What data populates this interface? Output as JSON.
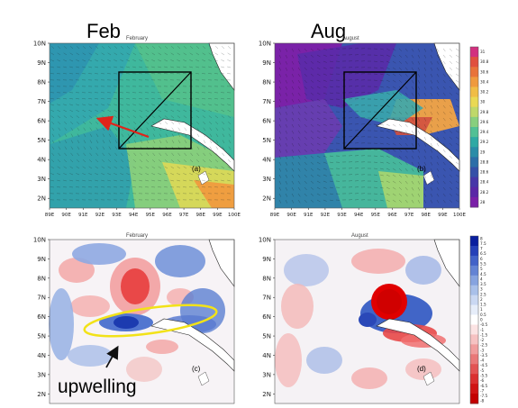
{
  "header": {
    "left": "Feb",
    "right": "Aug"
  },
  "annotation": {
    "upwelling": "upwelling"
  },
  "chart_data": [
    {
      "type": "heatmap",
      "panel": "(a)",
      "title": "February",
      "xlabel": "",
      "ylabel": "",
      "x_ticks": [
        "89E",
        "90E",
        "91E",
        "92E",
        "93E",
        "94E",
        "95E",
        "96E",
        "97E",
        "98E",
        "99E",
        "100E"
      ],
      "y_ticks": [
        "2N",
        "3N",
        "4N",
        "5N",
        "6N",
        "7N",
        "8N",
        "9N",
        "10N"
      ],
      "xlim": [
        89,
        100
      ],
      "ylim": [
        1.5,
        10
      ],
      "box_deg": {
        "lon": [
          93.3,
          97.8
        ],
        "lat": [
          4.8,
          8.7
        ]
      },
      "arrow_deg": {
        "from": [
          96.4,
          5.3
        ],
        "to": [
          92.9,
          6.4
        ]
      },
      "colormap": "temperature",
      "vectors": true
    },
    {
      "type": "heatmap",
      "panel": "(b)",
      "title": "August",
      "xlabel": "",
      "ylabel": "",
      "x_ticks": [
        "89E",
        "90E",
        "91E",
        "92E",
        "93E",
        "94E",
        "95E",
        "96E",
        "97E",
        "98E",
        "99E",
        "100E"
      ],
      "y_ticks": [
        "2N",
        "3N",
        "4N",
        "5N",
        "6N",
        "7N",
        "8N",
        "9N",
        "10N"
      ],
      "xlim": [
        89,
        100
      ],
      "ylim": [
        1.5,
        10
      ],
      "box_deg": {
        "lon": [
          93.3,
          97.8
        ],
        "lat": [
          4.8,
          8.7
        ]
      },
      "colormap": "temperature",
      "vectors": true,
      "colorbar": {
        "labels": [
          "31",
          "30.8",
          "30.6",
          "30.4",
          "30.2",
          "30",
          "29.8",
          "29.6",
          "29.4",
          "29.2",
          "29",
          "28.8",
          "28.6",
          "28.4",
          "28.2",
          "28"
        ],
        "colors": [
          "#d2307f",
          "#e0503f",
          "#e8733a",
          "#ef9a3e",
          "#f0bd46",
          "#e9d954",
          "#bfd86a",
          "#88cf7e",
          "#52c095",
          "#2fa9a4",
          "#2a8ca8",
          "#2c6ea8",
          "#3550a8",
          "#4737a8",
          "#5a27a6",
          "#7a1fa8"
        ]
      }
    },
    {
      "type": "heatmap",
      "panel": "(c)",
      "title": "February",
      "xlabel": "",
      "ylabel": "",
      "x_ticks": [],
      "y_ticks": [
        "2N",
        "3N",
        "4N",
        "5N",
        "6N",
        "7N",
        "8N",
        "9N",
        "10N"
      ],
      "xlim": [
        89,
        100
      ],
      "ylim": [
        1.5,
        10
      ],
      "colormap": "diverging",
      "ellipse_deg": {
        "center": [
          94.6,
          5.5
        ],
        "rx": 3.2,
        "ry": 0.5
      }
    },
    {
      "type": "heatmap",
      "panel": "(d)",
      "title": "August",
      "xlabel": "",
      "ylabel": "",
      "x_ticks": [],
      "y_ticks": [
        "2N",
        "3N",
        "4N",
        "5N",
        "6N",
        "7N",
        "8N",
        "9N",
        "10N"
      ],
      "xlim": [
        89,
        100
      ],
      "ylim": [
        1.5,
        10
      ],
      "colormap": "diverging",
      "colorbar": {
        "labels": [
          "8",
          "7.5",
          "7",
          "6.5",
          "6",
          "5.5",
          "5",
          "4.5",
          "4",
          "3.5",
          "3",
          "2.5",
          "2",
          "1.5",
          "1",
          "0.5",
          "0",
          "-0.5",
          "-1",
          "-1.5",
          "-2",
          "-2.5",
          "-3",
          "-3.5",
          "-4",
          "-4.5",
          "-5",
          "-5.5",
          "-6",
          "-6.5",
          "-7",
          "-7.5",
          "-8"
        ],
        "colors": [
          "#0a1f9e",
          "#2540b8",
          "#4262c8",
          "#6383d4",
          "#86a3df",
          "#a9c0e9",
          "#cad8f2",
          "#e6edf9",
          "#ffffff",
          "#fbe3e3",
          "#f6c2c2",
          "#f09d9d",
          "#e97878",
          "#e25353",
          "#da3030",
          "#d01414",
          "#c40000"
        ]
      }
    }
  ]
}
